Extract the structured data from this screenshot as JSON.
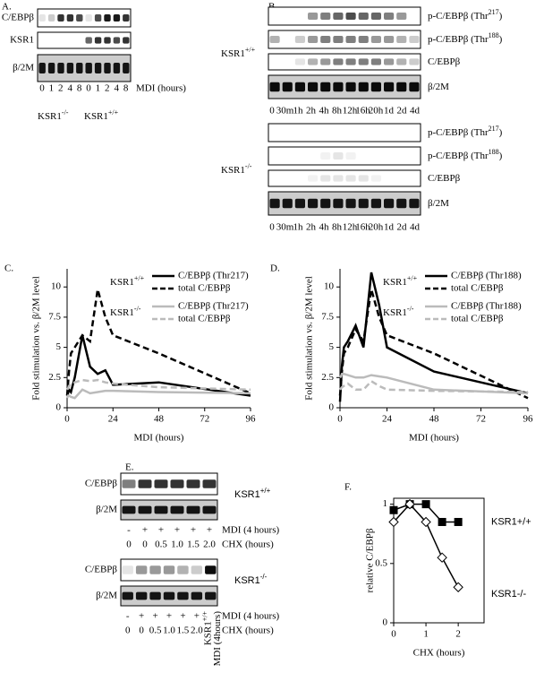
{
  "panel_a": {
    "label": "A.",
    "rows": [
      "C/EBPβ",
      "KSR1",
      "β/2M"
    ],
    "lanes": [
      "0",
      "1",
      "2",
      "4",
      "8",
      "0",
      "1",
      "2",
      "4",
      "8"
    ],
    "lanes_unit": "MDI (hours)",
    "groups": [
      {
        "base": "KSR1",
        "sup": "-/-"
      },
      {
        "base": "KSR1",
        "sup": "+/+"
      }
    ]
  },
  "panel_b": {
    "label": "B.",
    "blocks": [
      {
        "genotype": {
          "base": "KSR1",
          "sup": "+/+"
        },
        "rows": [
          {
            "text": "p-C/EBPβ (Thr",
            "sup": "217",
            "end": ")"
          },
          {
            "text": "p-C/EBPβ (Thr",
            "sup": "188",
            "end": ")"
          },
          {
            "text": "C/EBPβ"
          },
          {
            "text": "β/2M"
          }
        ],
        "lanes": [
          "0",
          "30m",
          "1h",
          "2h",
          "4h",
          "8h",
          "12h",
          "16h",
          "20h",
          "1d",
          "2d",
          "4d"
        ]
      },
      {
        "genotype": {
          "base": "KSR1",
          "sup": "-/-"
        },
        "rows": [
          {
            "text": "p-C/EBPβ (Thr",
            "sup": "217",
            "end": ")"
          },
          {
            "text": "p-C/EBPβ (Thr",
            "sup": "188",
            "end": ")"
          },
          {
            "text": "C/EBPβ"
          },
          {
            "text": "β/2M"
          }
        ],
        "lanes": [
          "0",
          "30m",
          "1h",
          "2h",
          "4h",
          "8h",
          "12h",
          "16h",
          "20h",
          "1d",
          "2d",
          "4d"
        ]
      }
    ]
  },
  "panel_e": {
    "label": "E.",
    "blocks": [
      {
        "genotype": {
          "base": "KSR1",
          "sup": "+/+"
        },
        "rows": [
          "C/EBPβ",
          "β/2M"
        ],
        "mdi": [
          "-",
          "+",
          "+",
          "+",
          "+",
          "+"
        ],
        "mdi_label": "MDI (4 hours)",
        "chx": [
          "0",
          "0",
          "0.5",
          "1.0",
          "1.5",
          "2.0"
        ],
        "chx_label": "CHX (hours)"
      },
      {
        "genotype": {
          "base": "KSR1",
          "sup": "-/-"
        },
        "rows": [
          "C/EBPβ",
          "β/2M"
        ],
        "mdi": [
          "-",
          "+",
          "+",
          "+",
          "+",
          "+"
        ],
        "mdi_label": "MDI (4 hours)",
        "chx": [
          "0",
          "0",
          "0.5",
          "1.0",
          "1.5",
          "2.0"
        ],
        "chx_label": "CHX (hours)",
        "extra_lane": {
          "base": "KSR1",
          "sup": "+/+",
          "note": "MDI (4hours)"
        }
      }
    ]
  },
  "chart_data": [
    {
      "type": "line",
      "panel": "C.",
      "x_label": "MDI (hours)",
      "y_label": "Fold stimulation vs. β/2M level",
      "x": [
        0,
        0.5,
        1,
        2,
        4,
        8,
        12,
        16,
        20,
        24,
        48,
        96
      ],
      "xlim": [
        0,
        96
      ],
      "xticks": [
        0,
        24,
        48,
        72,
        96
      ],
      "ylim": [
        0,
        11.5
      ],
      "yticks": [
        0,
        2.5,
        5,
        7.5,
        10
      ],
      "legend": "upper right",
      "annotations": [
        {
          "base": "KSR1",
          "sup": "+/+"
        },
        {
          "base": "KSR1",
          "sup": "-/-"
        }
      ],
      "series": [
        {
          "name": "C/EBPβ (Thr217)",
          "color": "#000000",
          "linestyle": "solid",
          "values": [
            1,
            1.2,
            1.5,
            1.3,
            2.5,
            6,
            3.4,
            2.8,
            3.1,
            1.9,
            2.1,
            1
          ]
        },
        {
          "name": "total C/EBPβ",
          "color": "#000000",
          "linestyle": "dashed",
          "values": [
            1,
            2,
            3,
            4.5,
            5,
            6,
            5.5,
            9.8,
            7.5,
            6,
            4.5,
            1.2
          ]
        },
        {
          "name": "C/EBPβ (Thr217)",
          "color": "#bbbbbb",
          "linestyle": "solid",
          "values": [
            0.8,
            1,
            1,
            0.9,
            0.8,
            1.5,
            1.2,
            1.3,
            1.4,
            1.4,
            1.3,
            1.2
          ]
        },
        {
          "name": "total C/EBPβ",
          "color": "#bbbbbb",
          "linestyle": "dashed",
          "values": [
            1.5,
            1.6,
            1.8,
            2,
            2.1,
            2.3,
            2.2,
            2.3,
            2.1,
            2,
            1.7,
            1.5
          ]
        }
      ]
    },
    {
      "type": "line",
      "panel": "D.",
      "x_label": "MDI (hours)",
      "y_label": "Fold stimulation vs. β/2M level",
      "x": [
        0,
        0.5,
        1,
        2,
        4,
        8,
        12,
        16,
        20,
        24,
        48,
        96
      ],
      "xlim": [
        0,
        96
      ],
      "xticks": [
        0,
        24,
        48,
        72,
        96
      ],
      "ylim": [
        0,
        11.5
      ],
      "yticks": [
        0,
        2.5,
        5,
        7.5,
        10
      ],
      "legend": "upper right",
      "annotations": [
        {
          "base": "KSR1",
          "sup": "+/+"
        },
        {
          "base": "KSR1",
          "sup": "-/-"
        }
      ],
      "series": [
        {
          "name": "C/EBPβ (Thr188)",
          "color": "#000000",
          "linestyle": "solid",
          "values": [
            0.5,
            2,
            3.5,
            5,
            5.5,
            6.8,
            5,
            11.2,
            8.5,
            5,
            3,
            1.2
          ]
        },
        {
          "name": "total C/EBPβ",
          "color": "#000000",
          "linestyle": "dashed",
          "values": [
            1,
            2,
            3,
            4.5,
            5,
            6.5,
            5.5,
            9.8,
            7.5,
            6,
            4.5,
            0.8
          ]
        },
        {
          "name": "C/EBPβ (Thr188)",
          "color": "#bbbbbb",
          "linestyle": "solid",
          "values": [
            2.5,
            2.6,
            2.8,
            2.8,
            2.7,
            2.5,
            2.5,
            2.7,
            2.6,
            2.5,
            1.5,
            1.2
          ]
        },
        {
          "name": "total C/EBPβ",
          "color": "#bbbbbb",
          "linestyle": "dashed",
          "values": [
            1.5,
            1.6,
            1.7,
            1.8,
            2,
            1.5,
            1.5,
            2.2,
            1.8,
            1.5,
            1.4,
            1.3
          ]
        }
      ]
    },
    {
      "type": "marker-line",
      "panel": "F.",
      "x_label": "CHX (hours)",
      "y_label": "relative C/EBPβ",
      "x": [
        0,
        0.5,
        1,
        1.5,
        2
      ],
      "xlim": [
        0,
        2.8
      ],
      "xticks": [
        0,
        1,
        2
      ],
      "ylim": [
        0,
        1.05
      ],
      "yticks": [
        0,
        0.5,
        1
      ],
      "series": [
        {
          "name": "KSR1+/+",
          "color": "#000000",
          "marker": "square",
          "values": [
            0.95,
            1,
            1,
            0.85,
            0.85
          ]
        },
        {
          "name": "KSR1-/-",
          "color": "#000000",
          "marker": "diamond",
          "values": [
            0.85,
            1,
            0.85,
            0.55,
            0.3
          ]
        }
      ]
    }
  ]
}
